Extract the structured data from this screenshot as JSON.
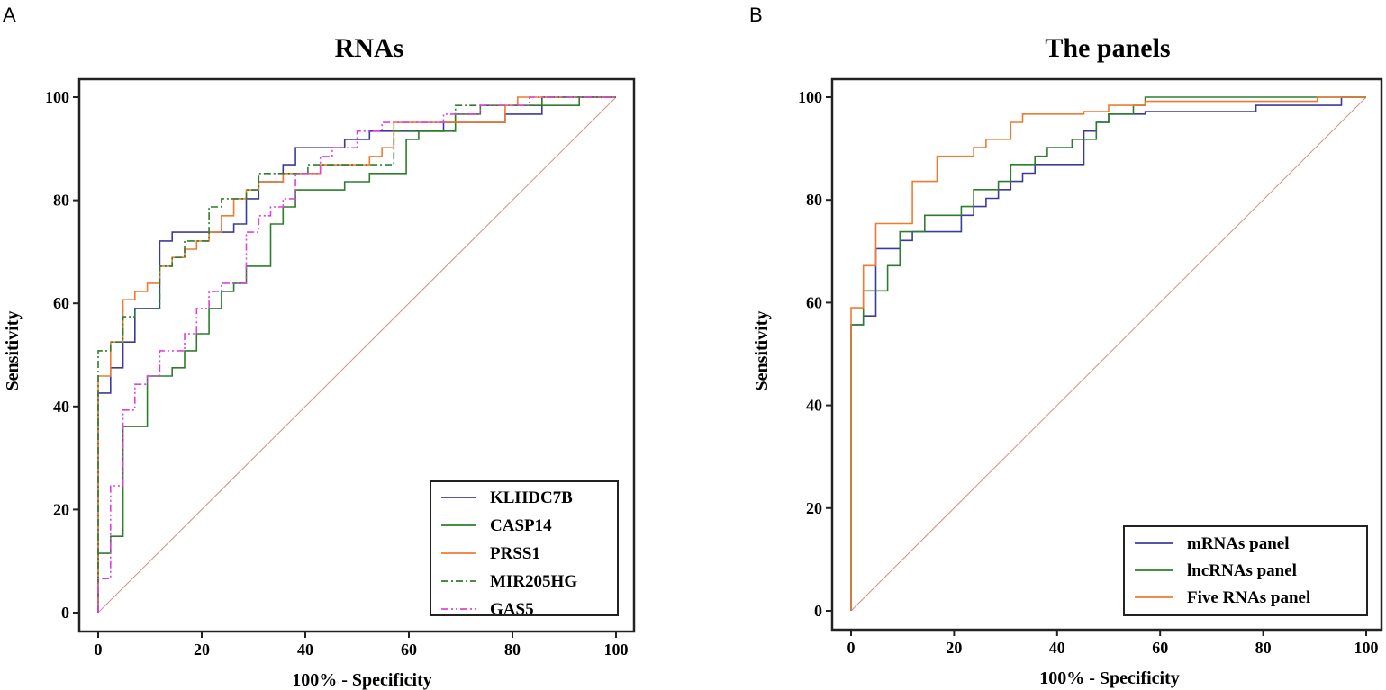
{
  "chart_data": [
    {
      "type": "line",
      "panel": "A",
      "title": "RNAs",
      "xlabel": "100% - Specificity",
      "ylabel": "Sensitivity",
      "xlim": [
        0,
        100
      ],
      "ylim": [
        0,
        100
      ],
      "xticks": [
        "0",
        "20",
        "40",
        "60",
        "80",
        "100"
      ],
      "yticks": [
        "0",
        "20",
        "40",
        "60",
        "80",
        "100"
      ],
      "legend_position": "bottom-right",
      "reference_line": {
        "x": [
          0,
          100
        ],
        "y": [
          0,
          100
        ],
        "color": "#d98a8a"
      },
      "series": [
        {
          "name": "KLHDC7B",
          "color": "#3b3b9b",
          "dash": "",
          "x": [
            0,
            0,
            2.4,
            2.4,
            4.8,
            4.8,
            7.1,
            7.1,
            11.9,
            11.9,
            14.3,
            14.3,
            26.2,
            26.2,
            28.6,
            28.6,
            31,
            31,
            35.7,
            35.7,
            38.1,
            38.1,
            47.6,
            47.6,
            52.4,
            52.4,
            66.7,
            66.7,
            78.6,
            78.6,
            85.7,
            85.7,
            100
          ],
          "y": [
            0,
            42.6,
            42.6,
            47.5,
            47.5,
            52.5,
            52.5,
            59,
            59,
            72.1,
            72.1,
            73.8,
            73.8,
            75.4,
            75.4,
            80.3,
            80.3,
            83.6,
            83.6,
            86.9,
            86.9,
            90.2,
            90.2,
            91.8,
            91.8,
            93.4,
            93.4,
            95.1,
            95.1,
            96.7,
            96.7,
            100,
            100
          ]
        },
        {
          "name": "CASP14",
          "color": "#2e7d2e",
          "dash": "",
          "x": [
            0,
            0,
            2.4,
            2.4,
            4.8,
            4.8,
            9.5,
            9.5,
            14.3,
            14.3,
            16.7,
            16.7,
            19,
            19,
            21.4,
            21.4,
            23.8,
            23.8,
            26.2,
            26.2,
            28.6,
            28.6,
            33.3,
            33.3,
            35.7,
            35.7,
            38.1,
            38.1,
            47.6,
            47.6,
            52.4,
            52.4,
            59.5,
            59.5,
            61.9,
            61.9,
            69,
            69,
            73.8,
            73.8,
            92.9,
            92.9,
            100
          ],
          "y": [
            0,
            11.5,
            11.5,
            14.8,
            14.8,
            36.1,
            36.1,
            45.9,
            45.9,
            47.5,
            47.5,
            50.8,
            50.8,
            54.1,
            54.1,
            59,
            59,
            62.3,
            62.3,
            63.9,
            63.9,
            67.2,
            67.2,
            75.4,
            75.4,
            78.7,
            78.7,
            82,
            82,
            83.6,
            83.6,
            85.2,
            85.2,
            91.8,
            91.8,
            93.4,
            93.4,
            96.7,
            96.7,
            98.4,
            98.4,
            100,
            100
          ]
        },
        {
          "name": "PRSS1",
          "color": "#f07a30",
          "dash": "",
          "x": [
            0,
            0,
            2.4,
            2.4,
            4.8,
            4.8,
            7.1,
            7.1,
            9.5,
            9.5,
            11.9,
            11.9,
            14.3,
            14.3,
            16.7,
            16.7,
            19,
            19,
            21.4,
            21.4,
            23.8,
            23.8,
            26.2,
            26.2,
            28.6,
            28.6,
            31,
            31,
            35.7,
            35.7,
            42.9,
            42.9,
            52.4,
            52.4,
            54.8,
            54.8,
            57.1,
            57.1,
            78.6,
            78.6,
            81,
            81,
            100
          ],
          "y": [
            0,
            45.9,
            45.9,
            52.5,
            52.5,
            60.7,
            60.7,
            62.3,
            62.3,
            63.9,
            63.9,
            67.2,
            67.2,
            68.9,
            68.9,
            70.5,
            70.5,
            72.1,
            72.1,
            73.8,
            73.8,
            77,
            77,
            80.3,
            80.3,
            82,
            82,
            83.6,
            83.6,
            85.2,
            85.2,
            86.9,
            86.9,
            88.5,
            88.5,
            90.2,
            90.2,
            95.1,
            95.1,
            98.4,
            98.4,
            100,
            100
          ]
        },
        {
          "name": "MIR205HG",
          "color": "#2e7d2e",
          "dash": "8,3,2,3",
          "x": [
            0,
            0,
            2.4,
            2.4,
            4.8,
            4.8,
            7.1,
            7.1,
            11.9,
            11.9,
            14.3,
            14.3,
            16.7,
            16.7,
            21.4,
            21.4,
            23.8,
            23.8,
            28.6,
            28.6,
            31,
            31,
            40.5,
            40.5,
            57.1,
            57.1,
            69,
            69,
            85.7,
            85.7,
            100
          ],
          "y": [
            0,
            50.8,
            50.8,
            52.5,
            52.5,
            57.4,
            57.4,
            59,
            59,
            67.2,
            67.2,
            68.9,
            68.9,
            72.1,
            72.1,
            78.7,
            78.7,
            80.3,
            80.3,
            82,
            82,
            85.2,
            85.2,
            86.9,
            86.9,
            93.4,
            93.4,
            98.4,
            98.4,
            100,
            100
          ]
        },
        {
          "name": "GAS5",
          "color": "#e040e0",
          "dash": "8,3,2,3,2,3",
          "x": [
            0,
            0,
            2.4,
            2.4,
            4.8,
            4.8,
            7.1,
            7.1,
            9.5,
            9.5,
            11.9,
            11.9,
            16.7,
            16.7,
            19,
            19,
            21.4,
            21.4,
            23.8,
            23.8,
            28.6,
            28.6,
            31,
            31,
            33.3,
            33.3,
            35.7,
            35.7,
            38.1,
            38.1,
            42.9,
            42.9,
            45.2,
            45.2,
            50,
            50,
            54.8,
            54.8,
            66.7,
            66.7,
            73.8,
            73.8,
            83.3,
            83.3,
            100
          ],
          "y": [
            0,
            6.6,
            6.6,
            24.6,
            24.6,
            39.3,
            39.3,
            44.3,
            44.3,
            45.9,
            45.9,
            50.8,
            50.8,
            54.1,
            54.1,
            59,
            59,
            62.3,
            62.3,
            63.9,
            63.9,
            73.8,
            73.8,
            77,
            77,
            78.7,
            78.7,
            80.3,
            80.3,
            85.2,
            85.2,
            88.5,
            88.5,
            90.2,
            90.2,
            93.4,
            93.4,
            95.1,
            95.1,
            96.7,
            96.7,
            98.4,
            98.4,
            100,
            100
          ]
        }
      ]
    },
    {
      "type": "line",
      "panel": "B",
      "title": "The panels",
      "xlabel": "100% - Specificity",
      "ylabel": "Sensitivity",
      "xlim": [
        0,
        100
      ],
      "ylim": [
        0,
        100
      ],
      "xticks": [
        "0",
        "20",
        "40",
        "60",
        "80",
        "100"
      ],
      "yticks": [
        "0",
        "20",
        "40",
        "60",
        "80",
        "100"
      ],
      "legend_position": "bottom-right",
      "reference_line": {
        "x": [
          0,
          100
        ],
        "y": [
          0,
          100
        ],
        "color": "#d98a8a"
      },
      "series": [
        {
          "name": "mRNAs panel",
          "color": "#3b3b9b",
          "dash": "",
          "x": [
            0,
            0,
            2.4,
            2.4,
            4.8,
            4.8,
            9.5,
            9.5,
            11.9,
            11.9,
            21.4,
            21.4,
            23.8,
            23.8,
            26.2,
            26.2,
            28.6,
            28.6,
            31,
            31,
            33.3,
            33.3,
            35.7,
            35.7,
            45.2,
            45.2,
            47.6,
            47.6,
            50,
            50,
            57.1,
            57.1,
            78.6,
            78.6,
            95.2,
            95.2,
            100
          ],
          "y": [
            0,
            55.7,
            55.7,
            57.4,
            57.4,
            70.5,
            70.5,
            72.1,
            72.1,
            73.8,
            73.8,
            77,
            77,
            78.7,
            78.7,
            80.3,
            80.3,
            82,
            82,
            83.6,
            83.6,
            85.2,
            85.2,
            86.9,
            86.9,
            93.4,
            93.4,
            95.1,
            95.1,
            96.7,
            96.7,
            97.2,
            97.2,
            98.4,
            98.4,
            100,
            100
          ]
        },
        {
          "name": "lncRNAs panel",
          "color": "#2e7d2e",
          "dash": "",
          "x": [
            0,
            0,
            2.4,
            2.4,
            7.1,
            7.1,
            9.5,
            9.5,
            14.3,
            14.3,
            21.4,
            21.4,
            23.8,
            23.8,
            28.6,
            28.6,
            31,
            31,
            35.7,
            35.7,
            38.1,
            38.1,
            42.9,
            42.9,
            47.6,
            47.6,
            50,
            50,
            54.8,
            54.8,
            57.1,
            57.1,
            85.7,
            85.7,
            100
          ],
          "y": [
            0,
            55.7,
            55.7,
            62.3,
            62.3,
            67.2,
            67.2,
            73.8,
            73.8,
            77,
            77,
            78.7,
            78.7,
            82,
            82,
            83.6,
            83.6,
            86.9,
            86.9,
            88.5,
            88.5,
            90.2,
            90.2,
            91.8,
            91.8,
            95.1,
            95.1,
            96.7,
            96.7,
            98.4,
            98.4,
            100,
            100,
            100,
            100
          ]
        },
        {
          "name": "Five RNAs panel",
          "color": "#f07a30",
          "dash": "",
          "x": [
            0,
            0,
            2.4,
            2.4,
            4.8,
            4.8,
            11.9,
            11.9,
            16.7,
            16.7,
            23.8,
            23.8,
            26.2,
            26.2,
            31,
            31,
            33.3,
            33.3,
            45.2,
            45.2,
            50,
            50,
            57.1,
            57.1,
            90.5,
            90.5,
            100
          ],
          "y": [
            0,
            59,
            59,
            67.2,
            67.2,
            75.4,
            75.4,
            83.6,
            83.6,
            88.5,
            88.5,
            90.2,
            90.2,
            91.8,
            91.8,
            95.1,
            95.1,
            96.7,
            96.7,
            97.2,
            97.2,
            98.4,
            98.4,
            99.2,
            99.2,
            100,
            100
          ]
        }
      ]
    }
  ]
}
